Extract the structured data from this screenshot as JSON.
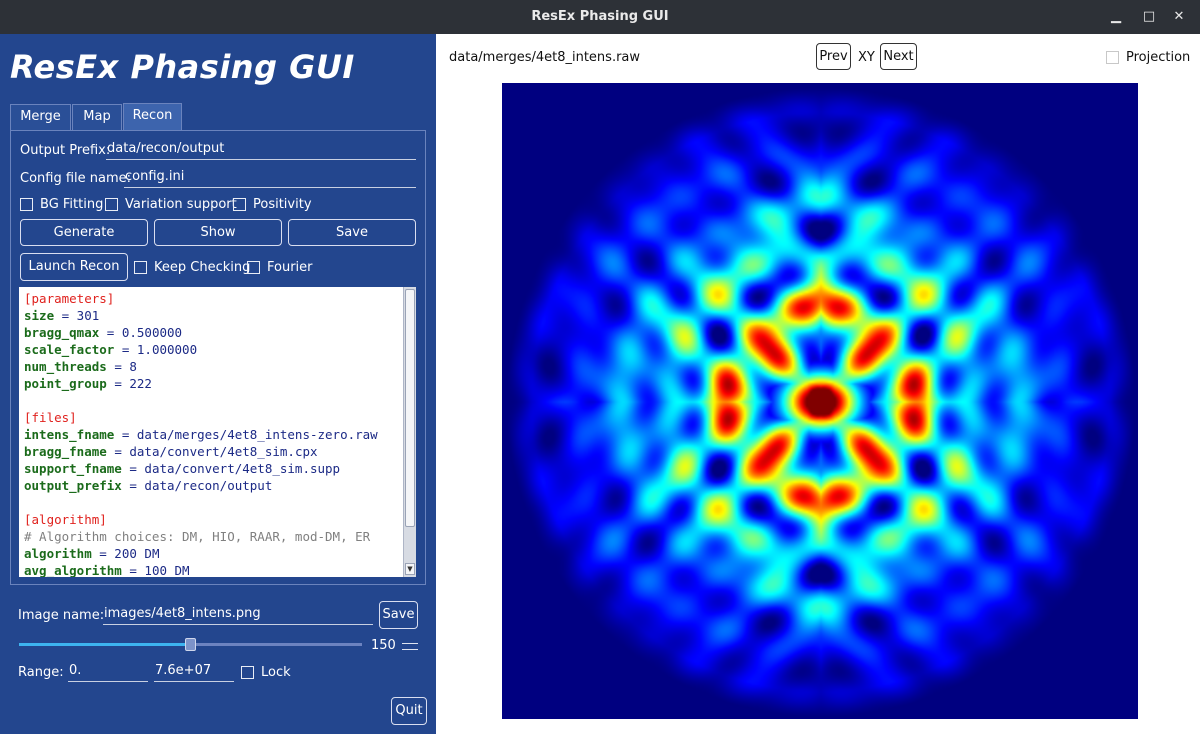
{
  "window": {
    "title": "ResEx Phasing GUI",
    "minimize_glyph": "▁",
    "maximize_glyph": "□",
    "close_glyph": "✕"
  },
  "app_title": "ResEx Phasing GUI",
  "tabs": [
    {
      "label": "Merge",
      "active": false
    },
    {
      "label": "Map",
      "active": false
    },
    {
      "label": "Recon",
      "active": true
    }
  ],
  "recon": {
    "output_prefix_label": "Output Prefix:",
    "output_prefix_value": "data/recon/output",
    "config_label": "Config file name:",
    "config_value": "config.ini",
    "bg_fitting_label": "BG Fitting",
    "variation_support_label": "Variation support",
    "positivity_label": "Positivity",
    "generate_label": "Generate",
    "show_label": "Show",
    "save_label": "Save",
    "launch_label": "Launch Recon",
    "keep_checking_label": "Keep Checking",
    "fourier_label": "Fourier"
  },
  "config_lines": [
    {
      "t": "sec",
      "text": "[parameters]"
    },
    {
      "t": "kv",
      "key": "size",
      "val": " = 301"
    },
    {
      "t": "kv",
      "key": "bragg_qmax",
      "val": " = 0.500000"
    },
    {
      "t": "kv",
      "key": "scale_factor",
      "val": " = 1.000000"
    },
    {
      "t": "kv",
      "key": "num_threads",
      "val": " = 8"
    },
    {
      "t": "kv",
      "key": "point_group",
      "val": " = 222"
    },
    {
      "t": "blank",
      "text": ""
    },
    {
      "t": "sec",
      "text": "[files]"
    },
    {
      "t": "kv",
      "key": "intens_fname",
      "val": " = data/merges/4et8_intens-zero.raw"
    },
    {
      "t": "kv",
      "key": "bragg_fname",
      "val": " = data/convert/4et8_sim.cpx"
    },
    {
      "t": "kv",
      "key": "support_fname",
      "val": " = data/convert/4et8_sim.supp"
    },
    {
      "t": "kv",
      "key": "output_prefix",
      "val": " = data/recon/output"
    },
    {
      "t": "blank",
      "text": ""
    },
    {
      "t": "sec",
      "text": "[algorithm]"
    },
    {
      "t": "cmt",
      "text": "# Algorithm choices: DM, HIO, RAAR, mod-DM, ER"
    },
    {
      "t": "kv",
      "key": "algorithm",
      "val": " = 200 DM"
    },
    {
      "t": "kv",
      "key": "avg_algorithm",
      "val": " = 100 DM"
    }
  ],
  "bottom": {
    "image_name_label": "Image name:",
    "image_name_value": "images/4et8_intens.png",
    "save_label": "Save",
    "slider_value": "150",
    "slider_fraction": 0.5,
    "range_label": "Range:",
    "range_min": "0.",
    "range_max": "7.6e+07",
    "lock_label": "Lock",
    "quit_label": "Quit"
  },
  "viewer": {
    "file_path": "data/merges/4et8_intens.raw",
    "prev_label": "Prev",
    "plane_label": "XY",
    "next_label": "Next",
    "projection_label": "Projection",
    "colormap": "jet"
  },
  "colors": {
    "panel_bg": "#23468e",
    "titlebar_bg": "#2d3137",
    "slider_fill": "#3db4f0"
  }
}
